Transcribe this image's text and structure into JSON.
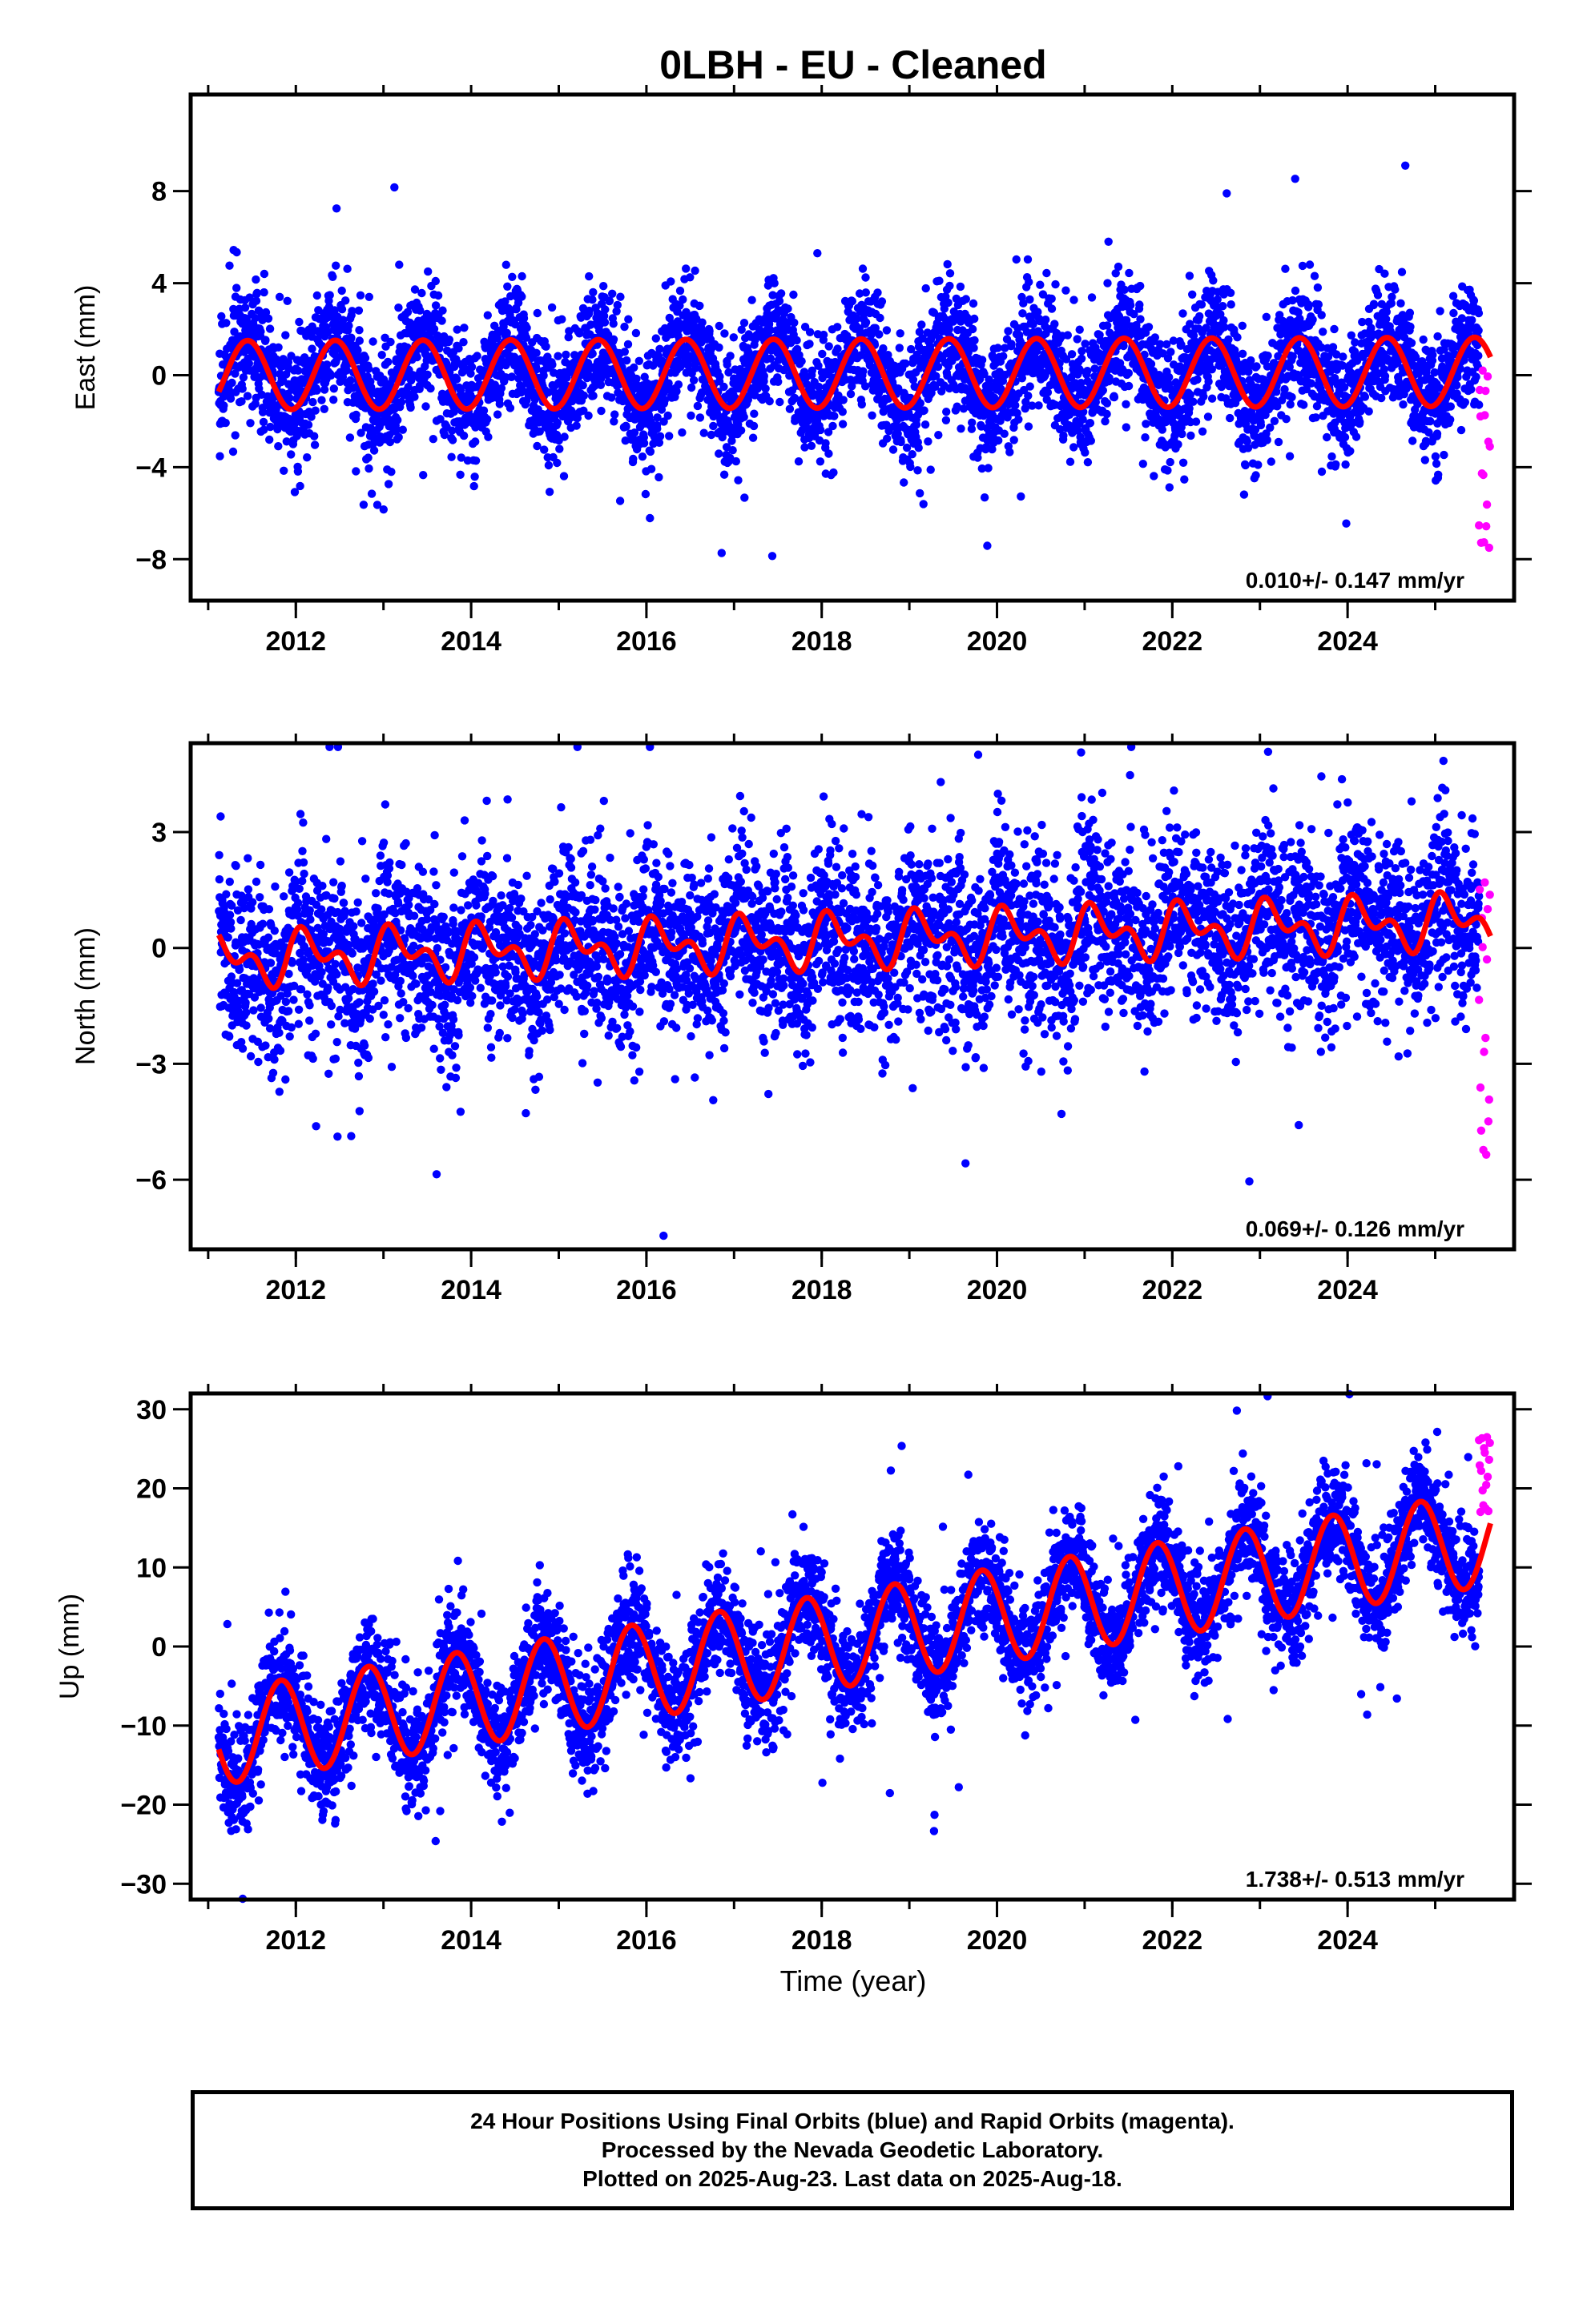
{
  "title": "0LBH  - EU - Cleaned",
  "footer": {
    "line1": "24 Hour Positions Using Final Orbits (blue) and Rapid Orbits (magenta).",
    "line2": "Processed by the Nevada Geodetic Laboratory.",
    "line3": "Plotted on 2025-Aug-23. Last data on 2025-Aug-18."
  },
  "colors": {
    "final": "#0000ff",
    "rapid": "#ff00ff",
    "model": "#ff0000",
    "frame": "#000000"
  },
  "chart_data": [
    {
      "type": "scatter",
      "ylabel": "East (mm)",
      "xlabel": "",
      "velocity": "0.010+/- 0.147 mm/yr",
      "xlim": [
        2010.8,
        2025.9
      ],
      "ylim": [
        -9.8,
        12.2
      ],
      "xticks": [
        "2012",
        "2014",
        "2016",
        "2018",
        "2020",
        "2022",
        "2024"
      ],
      "yticks": [
        "−8",
        "−4",
        "0",
        "4",
        "8"
      ],
      "series": [
        {
          "name": "Final Orbits",
          "color": "#0000ff",
          "data_start": 2011.12,
          "data_end": 2025.5,
          "trend": 0.0,
          "mean": 0.0,
          "annual": 1.5,
          "semiannual": 0.0,
          "phase": 0.2,
          "scatter_sd": 1.3
        },
        {
          "name": "Rapid Orbits",
          "color": "#ff00ff",
          "data_start": 2025.5,
          "data_end": 2025.63,
          "values_range": [
            -7.5,
            0.2
          ]
        }
      ],
      "model": {
        "color": "#ff0000",
        "trend": 0.01,
        "annual": 1.5,
        "semiannual": 0.0,
        "offset": 0.0
      }
    },
    {
      "type": "scatter",
      "ylabel": "North (mm)",
      "xlabel": "",
      "velocity": "0.069+/- 0.126 mm/yr",
      "xlim": [
        2010.8,
        2025.9
      ],
      "ylim": [
        -7.8,
        5.3
      ],
      "xticks": [
        "2012",
        "2014",
        "2016",
        "2018",
        "2020",
        "2022",
        "2024"
      ],
      "yticks": [
        "−6",
        "−3",
        "0",
        "3"
      ],
      "series": [
        {
          "name": "Final Orbits",
          "color": "#0000ff",
          "data_start": 2011.12,
          "data_end": 2025.5,
          "trend": 0.069,
          "mean": -0.3,
          "annual": 0.5,
          "semiannual": 0.4,
          "phase": 0.9,
          "scatter_sd": 1.1
        },
        {
          "name": "Rapid Orbits",
          "color": "#ff00ff",
          "data_start": 2025.5,
          "data_end": 2025.63,
          "values_range": [
            -5.5,
            1.7
          ]
        }
      ],
      "model": {
        "color": "#ff0000",
        "trend": 0.069,
        "annual": 0.5,
        "semiannual": 0.4,
        "offset": -0.3
      }
    },
    {
      "type": "scatter",
      "ylabel": "Up (mm)",
      "xlabel": "Time (year)",
      "velocity": "1.738+/- 0.513 mm/yr",
      "xlim": [
        2010.8,
        2025.9
      ],
      "ylim": [
        -32.0,
        32.0
      ],
      "xticks": [
        "2012",
        "2014",
        "2016",
        "2018",
        "2020",
        "2022",
        "2024"
      ],
      "yticks": [
        "−30",
        "−20",
        "−10",
        "0",
        "10",
        "20",
        "30"
      ],
      "series": [
        {
          "name": "Final Orbits",
          "color": "#0000ff",
          "data_start": 2011.12,
          "data_end": 2025.5,
          "trend": 1.738,
          "mean": -11.5,
          "annual": 6.0,
          "semiannual": 0.0,
          "phase": 0.58,
          "scatter_sd": 3.5
        },
        {
          "name": "Rapid Orbits",
          "color": "#ff00ff",
          "data_start": 2025.5,
          "data_end": 2025.63,
          "values_range": [
            17.0,
            26.5
          ]
        }
      ],
      "model": {
        "color": "#ff0000",
        "trend": 1.738,
        "annual": 6.0,
        "semiannual": 0.0,
        "offset": -11.5
      }
    }
  ]
}
